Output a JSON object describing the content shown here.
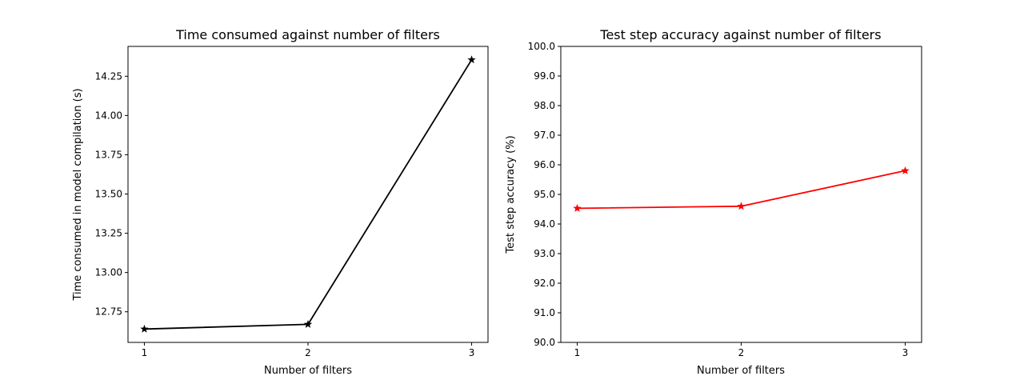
{
  "chart_data": [
    {
      "type": "line",
      "title": "Time consumed against number of filters",
      "xlabel": "Number of filters",
      "ylabel": "Time consumed in model compilation (s)",
      "x": [
        1,
        2,
        3
      ],
      "xticks": [
        "1",
        "2",
        "3"
      ],
      "xlim": [
        0.9,
        3.1
      ],
      "ylim": [
        12.555,
        14.44
      ],
      "yticks": [
        "12.75",
        "13.00",
        "13.25",
        "13.50",
        "13.75",
        "14.00",
        "14.25"
      ],
      "ytick_values": [
        12.75,
        13.0,
        13.25,
        13.5,
        13.75,
        14.0,
        14.25
      ],
      "series": [
        {
          "values": [
            12.64,
            12.67,
            14.355
          ],
          "color": "#000000",
          "marker": "star"
        }
      ],
      "grid": false
    },
    {
      "type": "line",
      "title": "Test step accuracy against number of filters",
      "xlabel": "Number of filters",
      "ylabel": "Test step accuracy (%)",
      "x": [
        1,
        2,
        3
      ],
      "xticks": [
        "1",
        "2",
        "3"
      ],
      "xlim": [
        0.9,
        3.1
      ],
      "ylim": [
        90.0,
        100.0
      ],
      "yticks": [
        "90.0",
        "91.0",
        "92.0",
        "93.0",
        "94.0",
        "95.0",
        "96.0",
        "97.0",
        "98.0",
        "99.0",
        "100.0"
      ],
      "ytick_values": [
        90,
        91,
        92,
        93,
        94,
        95,
        96,
        97,
        98,
        99,
        100
      ],
      "series": [
        {
          "values": [
            94.53,
            94.6,
            95.8
          ],
          "color": "#ff0000",
          "marker": "star"
        }
      ],
      "grid": false
    }
  ]
}
